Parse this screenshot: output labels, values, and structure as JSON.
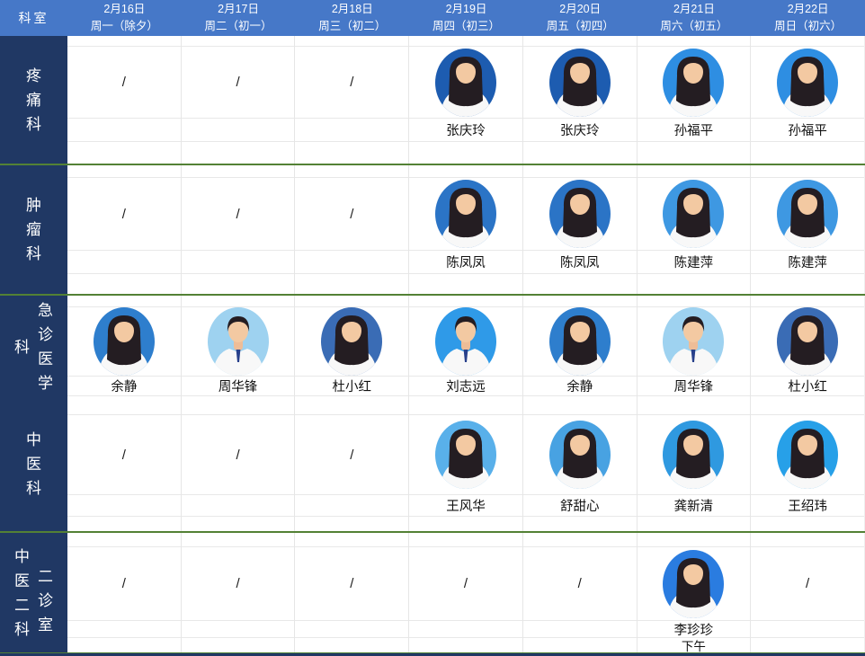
{
  "header": {
    "corner_label": "科室",
    "days": [
      {
        "date": "2月16日",
        "weekday": "周一（除夕）"
      },
      {
        "date": "2月17日",
        "weekday": "周二（初一）"
      },
      {
        "date": "2月18日",
        "weekday": "周三（初二）"
      },
      {
        "date": "2月19日",
        "weekday": "周四（初三）"
      },
      {
        "date": "2月20日",
        "weekday": "周五（初四）"
      },
      {
        "date": "2月21日",
        "weekday": "周六（初五）"
      },
      {
        "date": "2月22日",
        "weekday": "周日（初六）"
      }
    ]
  },
  "colors": {
    "header_bg": "#4678c8",
    "dept_column_bg": "#203864",
    "row_divider_green": "#538135",
    "grid_line": "#e8e8e8"
  },
  "departments": [
    {
      "name": "疼痛科",
      "label_columns": [
        "疼痛科"
      ],
      "cells": [
        {
          "slash": "/"
        },
        {
          "slash": "/"
        },
        {
          "slash": "/"
        },
        {
          "doctor": "张庆玲",
          "avatar_bg": "#1d5cb0",
          "hair": "long"
        },
        {
          "doctor": "张庆玲",
          "avatar_bg": "#1d5cb0",
          "hair": "long"
        },
        {
          "doctor": "孙福平",
          "avatar_bg": "#2e8ee2",
          "hair": "long"
        },
        {
          "doctor": "孙福平",
          "avatar_bg": "#2e8ee2",
          "hair": "long"
        }
      ]
    },
    {
      "name": "肿瘤科",
      "label_columns": [
        "肿瘤科"
      ],
      "cells": [
        {
          "slash": "/"
        },
        {
          "slash": "/"
        },
        {
          "slash": "/"
        },
        {
          "doctor": "陈凤凤",
          "avatar_bg": "#2b74c6",
          "hair": "long"
        },
        {
          "doctor": "陈凤凤",
          "avatar_bg": "#2b74c6",
          "hair": "long"
        },
        {
          "doctor": "陈建萍",
          "avatar_bg": "#3e98e2",
          "hair": "long"
        },
        {
          "doctor": "陈建萍",
          "avatar_bg": "#3e98e2",
          "hair": "long"
        }
      ]
    },
    {
      "name": "急诊医学科",
      "label_columns": [
        "科",
        "急诊医学"
      ],
      "cells": [
        {
          "doctor": "余静",
          "avatar_bg": "#2e7ecd",
          "hair": "long"
        },
        {
          "doctor": "周华锋",
          "avatar_bg": "#9ed2f0",
          "hair": "short"
        },
        {
          "doctor": "杜小红",
          "avatar_bg": "#3a6cb5",
          "hair": "long"
        },
        {
          "doctor": "刘志远",
          "avatar_bg": "#2f9ae8",
          "hair": "short"
        },
        {
          "doctor": "余静",
          "avatar_bg": "#2e7ecd",
          "hair": "long"
        },
        {
          "doctor": "周华锋",
          "avatar_bg": "#9ed2f0",
          "hair": "short"
        },
        {
          "doctor": "杜小红",
          "avatar_bg": "#3a6cb5",
          "hair": "long"
        }
      ]
    },
    {
      "name": "中医科",
      "label_columns": [
        "中医科"
      ],
      "cells": [
        {
          "slash": "/"
        },
        {
          "slash": "/"
        },
        {
          "slash": "/"
        },
        {
          "doctor": "王风华",
          "avatar_bg": "#59b0ea",
          "hair": "long"
        },
        {
          "doctor": "舒甜心",
          "avatar_bg": "#48a2e2",
          "hair": "long"
        },
        {
          "doctor": "龚新清",
          "avatar_bg": "#2f99e0",
          "hair": "long"
        },
        {
          "doctor": "王绍玮",
          "avatar_bg": "#27a0e8",
          "hair": "long"
        }
      ]
    },
    {
      "name": "中医二科二诊室",
      "label_columns": [
        "中医二科",
        "二诊室"
      ],
      "cells": [
        {
          "slash": "/"
        },
        {
          "slash": "/"
        },
        {
          "slash": "/"
        },
        {
          "slash": "/"
        },
        {
          "slash": "/"
        },
        {
          "doctor": "李珍珍",
          "avatar_bg": "#2a7ce0",
          "hair": "long",
          "note": "下午"
        },
        {
          "slash": "/"
        }
      ]
    }
  ]
}
